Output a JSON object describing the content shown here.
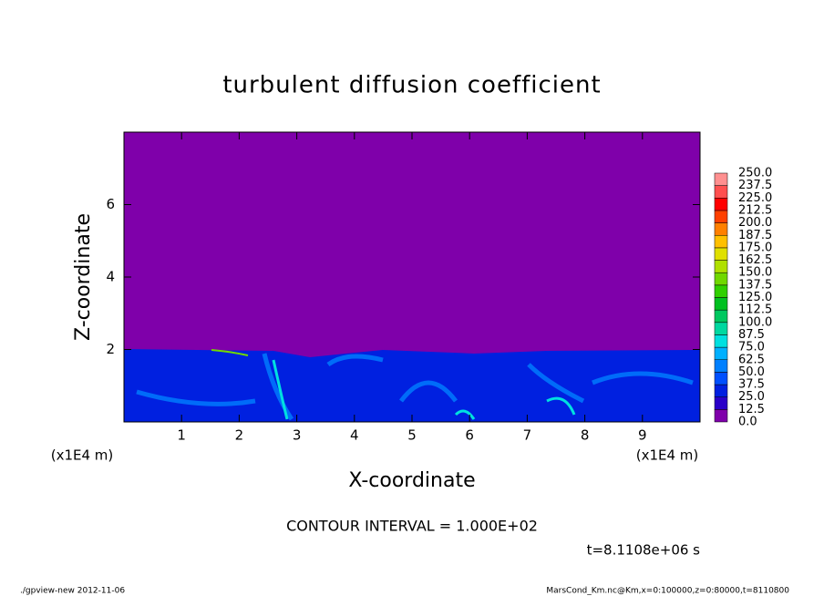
{
  "chart_data": {
    "type": "contour",
    "title": "turbulent diffusion coefficient",
    "xlabel": "X-coordinate",
    "ylabel": "Z-coordinate",
    "xunit": "(x1E4 m)",
    "xlim": [
      0,
      10
    ],
    "ylim": [
      0,
      8
    ],
    "xticks": [
      1,
      2,
      3,
      4,
      5,
      6,
      7,
      8,
      9
    ],
    "yticks": [
      2,
      4,
      6
    ],
    "colorbar": {
      "levels": [
        {
          "value": 0,
          "label": "0.0"
        },
        {
          "value": 12.5,
          "label": "12.5"
        },
        {
          "value": 25,
          "label": "25.0"
        },
        {
          "value": 37.5,
          "label": "37.5"
        },
        {
          "value": 50,
          "label": "50.0"
        },
        {
          "value": 62.5,
          "label": "62.5"
        },
        {
          "value": 75,
          "label": "75.0"
        },
        {
          "value": 87.5,
          "label": "87.5"
        },
        {
          "value": 100,
          "label": "100.0"
        },
        {
          "value": 112.5,
          "label": "112.5"
        },
        {
          "value": 125,
          "label": "125.0"
        },
        {
          "value": 137.5,
          "label": "137.5"
        },
        {
          "value": 150,
          "label": "150.0"
        },
        {
          "value": 162.5,
          "label": "162.5"
        },
        {
          "value": 175,
          "label": "175.0"
        },
        {
          "value": 187.5,
          "label": "187.5"
        },
        {
          "value": 200,
          "label": "200.0"
        },
        {
          "value": 212.5,
          "label": "212.5"
        },
        {
          "value": 225,
          "label": "225.0"
        },
        {
          "value": 237.5,
          "label": "237.5"
        },
        {
          "value": 250,
          "label": "250.0"
        }
      ],
      "colors": [
        "#7f00aa",
        "#2a00c8",
        "#0020e0",
        "#0050ff",
        "#0080ff",
        "#00b0ff",
        "#00e0e0",
        "#00d8a0",
        "#00c860",
        "#00c020",
        "#30d000",
        "#70d800",
        "#b0e000",
        "#e0e000",
        "#ffc000",
        "#ff8000",
        "#ff4000",
        "#ff0000",
        "#ff5050",
        "#ff9090"
      ]
    },
    "contour_interval": "CONTOUR INTERVAL = 1.000E+02",
    "time_label": "t=8.1108e+06 s",
    "footer_left": "./gpview-new  2012-11-06",
    "footer_right": "MarsCond_Km.nc@Km,x=0:100000,z=0:80000,t=8110800"
  }
}
